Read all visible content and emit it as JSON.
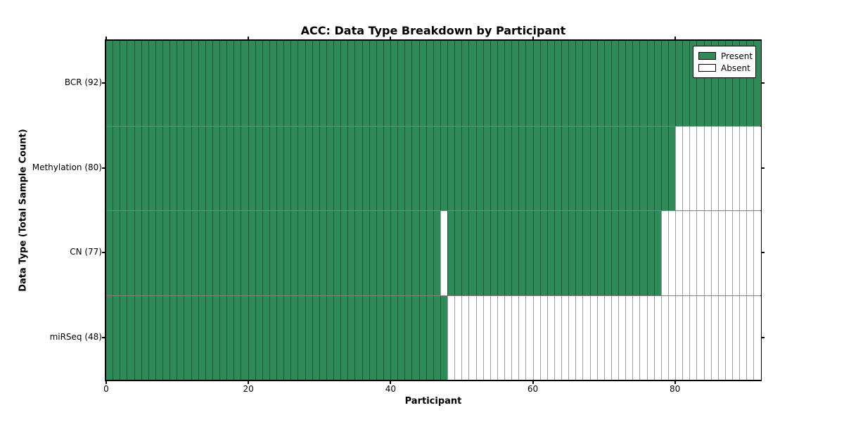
{
  "chart_data": {
    "type": "heatmap",
    "title": "ACC: Data Type Breakdown by Participant",
    "xlabel": "Participant",
    "ylabel": "Data Type (Total Sample Count)",
    "n_participants": 92,
    "xlim": [
      0,
      92
    ],
    "x_ticks": [
      {
        "label": "0",
        "value": 0
      },
      {
        "label": "20",
        "value": 20
      },
      {
        "label": "40",
        "value": 40
      },
      {
        "label": "60",
        "value": 60
      },
      {
        "label": "80",
        "value": 80
      }
    ],
    "rows": [
      {
        "label": "BCR (92)",
        "data_type": "BCR",
        "total_samples": 92,
        "present_ranges": [
          [
            0,
            91
          ]
        ]
      },
      {
        "label": "Methylation (80)",
        "data_type": "Methylation",
        "total_samples": 80,
        "present_ranges": [
          [
            0,
            79
          ]
        ]
      },
      {
        "label": "CN (77)",
        "data_type": "CN",
        "total_samples": 77,
        "present_ranges": [
          [
            0,
            46
          ],
          [
            48,
            77
          ]
        ]
      },
      {
        "label": "miRSeq (48)",
        "data_type": "miRSeq",
        "total_samples": 48,
        "present_ranges": [
          [
            0,
            47
          ]
        ]
      }
    ],
    "legend": {
      "position": "upper right",
      "items": [
        {
          "label": "Present",
          "color": "#2e8b57"
        },
        {
          "label": "Absent",
          "color": "#ffffff"
        }
      ]
    },
    "colors": {
      "present": "#2e8b57",
      "absent": "#ffffff",
      "cell_edge": "rgba(0,0,0,0.38)",
      "spine": "#000000"
    },
    "grid": false
  }
}
